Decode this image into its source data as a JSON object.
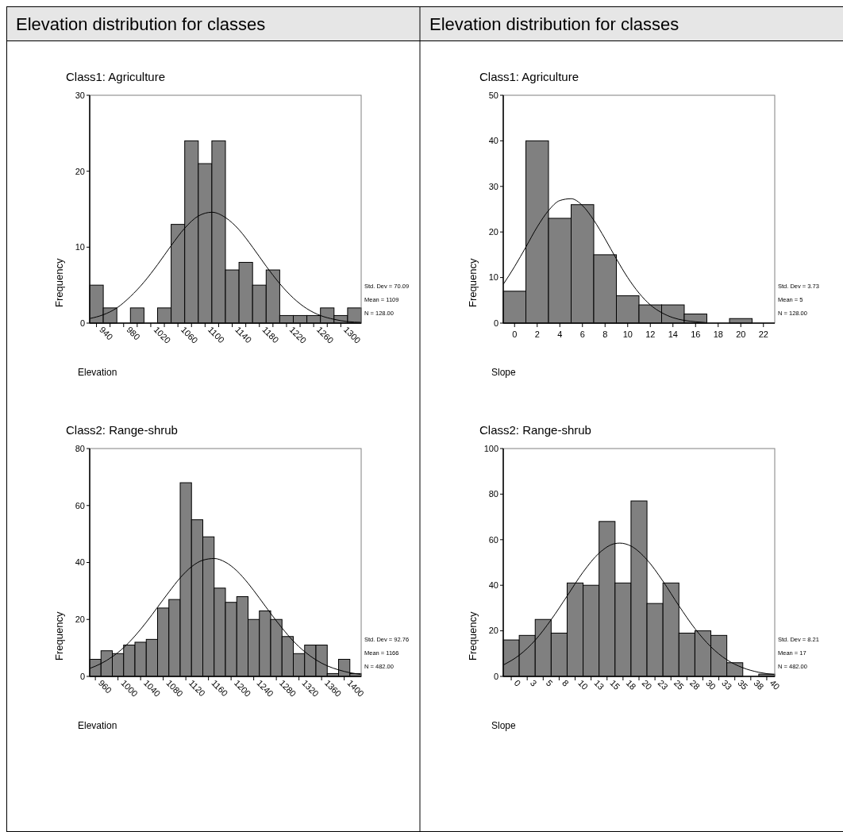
{
  "chart_data": [
    {
      "type": "histogram",
      "title": "Elevation distribution for classes",
      "subtitle": "Class1: Agriculture",
      "xlabel": "Elevation",
      "ylabel": "Frequency",
      "bins": [
        930,
        950,
        970,
        990,
        1010,
        1030,
        1050,
        1070,
        1090,
        1110,
        1130,
        1150,
        1170,
        1190,
        1210,
        1230,
        1250,
        1270,
        1290,
        1310,
        1330
      ],
      "xlim": [
        930,
        1330
      ],
      "xticks": [
        940,
        {
          "value": 960,
          "label": null
        },
        980,
        {
          "value": 1000,
          "label": null
        },
        1020,
        {
          "value": 1040,
          "label": null
        },
        1060,
        {
          "value": 1080,
          "label": null
        },
        1100,
        {
          "value": 1120,
          "label": null
        },
        1140,
        {
          "value": 1160,
          "label": null
        },
        1180,
        {
          "value": 1200,
          "label": null
        },
        1220,
        {
          "value": 1240,
          "label": null
        },
        1260,
        {
          "value": 1280,
          "label": null
        },
        1300
      ],
      "ylim": [
        0,
        30
      ],
      "yticks": [
        0,
        10,
        20,
        30
      ],
      "grid": false,
      "series": [
        {
          "color": "#808080",
          "values": [
            5,
            2,
            0,
            2,
            0,
            2,
            13,
            24,
            21,
            24,
            7,
            8,
            5,
            7,
            1,
            1,
            1,
            2,
            1,
            2
          ]
        },
        {
          "type": "line",
          "color": "#000000",
          "x": [
            930,
            950,
            970,
            990,
            1010,
            1030,
            1050,
            1070,
            1090,
            1110,
            1130,
            1150,
            1170,
            1190,
            1210,
            1230,
            1250,
            1270,
            1290,
            1310,
            1330
          ],
          "values": [
            0.6,
            1.1,
            2.0,
            3.5,
            5.4,
            7.7,
            10.2,
            12.5,
            14.1,
            14.6,
            13.9,
            12.3,
            10.0,
            7.5,
            5.2,
            3.3,
            1.9,
            1.0,
            0.5,
            0.2,
            0.1
          ]
        }
      ],
      "annotations": [
        "Std. Dev = 70.09",
        "Mean = 1109",
        "N = 128.00"
      ]
    },
    {
      "type": "histogram",
      "title": "Elevation distribution for classes",
      "subtitle": "Class1: Agriculture",
      "xlabel": "Slope",
      "ylabel": "Frequency",
      "bins": [
        -1,
        1,
        3,
        5,
        7,
        9,
        11,
        13,
        15,
        17,
        19,
        21,
        23
      ],
      "xlim": [
        -1,
        23
      ],
      "xticks": [
        0,
        2,
        4,
        6,
        8,
        10,
        12,
        14,
        16,
        18,
        20,
        22
      ],
      "ylim": [
        0,
        50
      ],
      "yticks": [
        0,
        10,
        20,
        30,
        40,
        50
      ],
      "grid": false,
      "series": [
        {
          "color": "#808080",
          "values": [
            7,
            40,
            23,
            26,
            15,
            6,
            4,
            4,
            2,
            0,
            1,
            0
          ]
        },
        {
          "type": "line",
          "color": "#000000",
          "x": [
            -1,
            0,
            1,
            2,
            3,
            4,
            5,
            6,
            7,
            8,
            9,
            10,
            11,
            12,
            13,
            14,
            15,
            16,
            17
          ],
          "values": [
            8.5,
            12.4,
            16.7,
            21.1,
            24.7,
            26.9,
            27.3,
            25.8,
            22.6,
            18.5,
            14.1,
            10.0,
            6.6,
            4.0,
            2.3,
            1.2,
            0.6,
            0.3,
            0.1
          ]
        }
      ],
      "annotations": [
        "Std. Dev = 3.73",
        "Mean = 5",
        "N = 128.00"
      ]
    },
    {
      "type": "histogram",
      "subtitle": "Class2: Range-shrub",
      "xlabel": "Elevation",
      "ylabel": "Frequency",
      "bins": [
        950,
        970,
        990,
        1010,
        1030,
        1050,
        1070,
        1090,
        1110,
        1130,
        1150,
        1170,
        1190,
        1210,
        1230,
        1250,
        1270,
        1290,
        1310,
        1330,
        1350,
        1370,
        1390,
        1410,
        1430
      ],
      "xlim": [
        950,
        1430
      ],
      "xticks": [
        960,
        1000,
        1040,
        1080,
        1120,
        1160,
        1200,
        1240,
        1280,
        1320,
        1360,
        1400
      ],
      "ylim": [
        0,
        80
      ],
      "yticks": [
        0,
        20,
        40,
        60,
        80
      ],
      "grid": false,
      "series": [
        {
          "color": "#808080",
          "values": [
            6,
            9,
            8,
            11,
            12,
            13,
            24,
            27,
            68,
            55,
            49,
            31,
            26,
            28,
            20,
            23,
            20,
            14,
            8,
            11,
            11,
            1,
            6,
            1
          ]
        },
        {
          "type": "line",
          "color": "#000000",
          "x": [
            950,
            970,
            990,
            1010,
            1030,
            1050,
            1070,
            1090,
            1110,
            1130,
            1150,
            1170,
            1190,
            1210,
            1230,
            1250,
            1270,
            1290,
            1310,
            1330,
            1350,
            1370,
            1390,
            1410,
            1430
          ],
          "values": [
            2.8,
            4.5,
            6.9,
            10.1,
            14.2,
            19.0,
            24.3,
            29.6,
            34.6,
            38.5,
            40.8,
            41.4,
            40.1,
            37.1,
            32.7,
            27.5,
            22.1,
            17.0,
            12.4,
            8.7,
            5.8,
            3.7,
            2.3,
            1.3,
            0.7
          ]
        }
      ],
      "annotations": [
        "Std. Dev = 92.76",
        "Mean = 1166",
        "N = 482.00"
      ]
    },
    {
      "type": "histogram",
      "subtitle": "Class2: Range-shrub",
      "xlabel": "Slope",
      "ylabel": "Frequency",
      "bins": [
        -1.25,
        1.25,
        3.75,
        6.25,
        8.75,
        11.25,
        13.75,
        16.25,
        18.75,
        21.25,
        23.75,
        26.25,
        28.75,
        31.25,
        33.75,
        36.25,
        38.75,
        41.25
      ],
      "xlim": [
        -1.25,
        41.25
      ],
      "xticks": [
        0,
        {
          "value": 2.5,
          "label": "3"
        },
        5,
        {
          "value": 7.5,
          "label": "8"
        },
        10,
        {
          "value": 12.5,
          "label": "13"
        },
        15,
        {
          "value": 17.5,
          "label": "18"
        },
        20,
        {
          "value": 22.5,
          "label": "23"
        },
        25,
        {
          "value": 27.5,
          "label": "28"
        },
        30,
        {
          "value": 32.5,
          "label": "33"
        },
        35,
        {
          "value": 37.5,
          "label": "38"
        },
        40
      ],
      "ylim": [
        0,
        100
      ],
      "yticks": [
        0,
        20,
        40,
        60,
        80,
        100
      ],
      "grid": false,
      "series": [
        {
          "color": "#808080",
          "values": [
            16,
            18,
            25,
            19,
            41,
            40,
            68,
            41,
            77,
            32,
            41,
            19,
            20,
            18,
            6,
            0,
            1
          ]
        },
        {
          "type": "line",
          "color": "#000000",
          "x": [
            -1.25,
            1.25,
            3.75,
            6.25,
            8.75,
            11.25,
            13.75,
            16.25,
            17,
            18.75,
            21.25,
            23.75,
            26.25,
            28.75,
            31.25,
            33.75,
            36.25,
            38.75,
            41.25
          ],
          "values": [
            5.0,
            9.3,
            15.9,
            24.9,
            35.3,
            45.8,
            54.1,
            58.3,
            58.5,
            57.2,
            51.2,
            41.8,
            31.0,
            21.0,
            13.0,
            7.3,
            3.8,
            1.8,
            0.8
          ]
        }
      ],
      "annotations": [
        "Std. Dev = 8.21",
        "Mean = 17",
        "N = 482.00"
      ]
    }
  ]
}
